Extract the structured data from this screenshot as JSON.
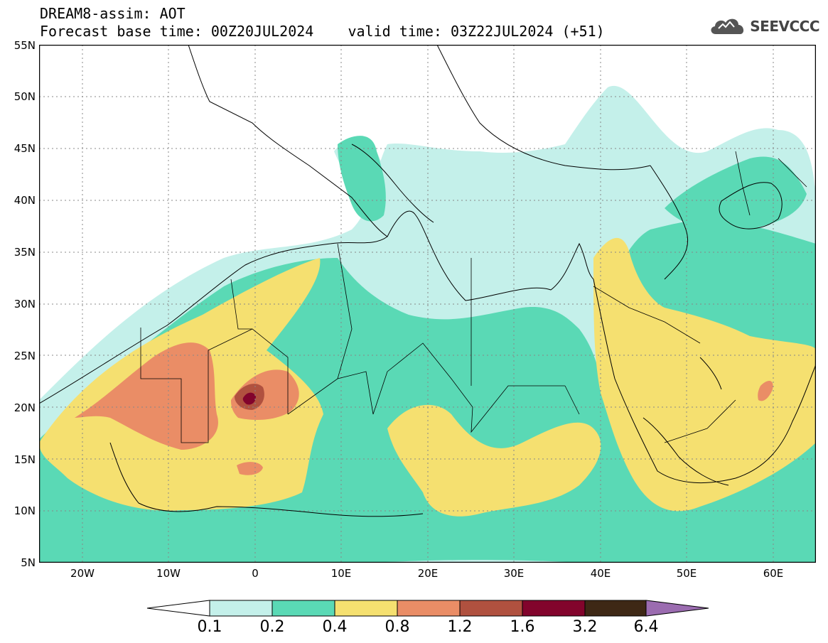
{
  "header": {
    "line1": "DREAM8-assim: AOT",
    "line2": "Forecast base time: 00Z20JUL2024    valid time: 03Z22JUL2024 (+51)"
  },
  "logo": {
    "text": "SEEVCCC",
    "icon": "cloud-icon"
  },
  "map": {
    "y_ticks": [
      "55N",
      "50N",
      "45N",
      "40N",
      "35N",
      "30N",
      "25N",
      "20N",
      "15N",
      "10N",
      "5N"
    ],
    "x_ticks": [
      "20W",
      "10W",
      "0",
      "10E",
      "20E",
      "30E",
      "40E",
      "50E",
      "60E"
    ],
    "lat_range": [
      5,
      55
    ],
    "lon_range": [
      -25,
      65
    ],
    "grid": "dotted"
  },
  "colorbar": {
    "labels": [
      "0.1",
      "0.2",
      "0.4",
      "0.8",
      "1.2",
      "1.6",
      "3.2",
      "6.4"
    ],
    "colors": [
      "#c4f0ea",
      "#5ad9b5",
      "#f5e070",
      "#ea8d66",
      "#b0513f",
      "#82042c",
      "#3e2815",
      "#9b6cb0"
    ]
  }
}
